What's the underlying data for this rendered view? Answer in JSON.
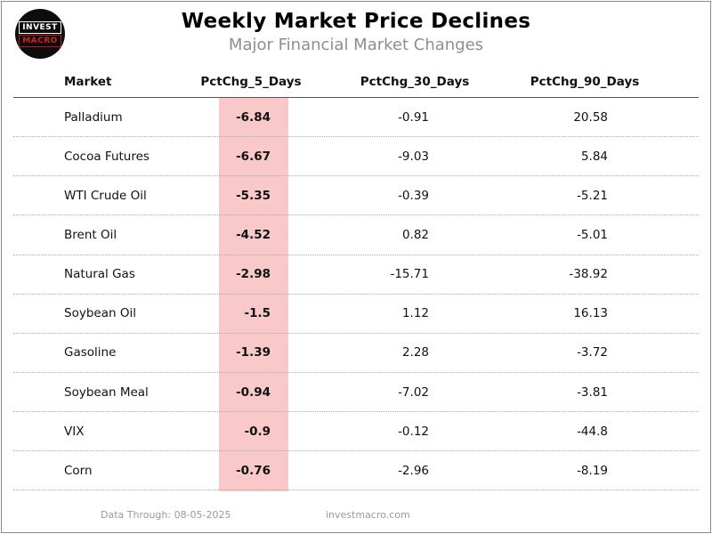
{
  "logo": {
    "line1": "INVEST",
    "line2": "MACRO"
  },
  "header": {
    "title": "Weekly Market Price Declines",
    "subtitle": "Major Financial Market Changes"
  },
  "table": {
    "columns": {
      "market": "Market",
      "d5": "PctChg_5_Days",
      "d30": "PctChg_30_Days",
      "d90": "PctChg_90_Days"
    },
    "highlight_color": "#f9c9c9",
    "rows": [
      {
        "market": "Palladium",
        "d5": "-6.84",
        "d30": "-0.91",
        "d90": "20.58"
      },
      {
        "market": "Cocoa Futures",
        "d5": "-6.67",
        "d30": "-9.03",
        "d90": "5.84"
      },
      {
        "market": "WTI Crude Oil",
        "d5": "-5.35",
        "d30": "-0.39",
        "d90": "-5.21"
      },
      {
        "market": "Brent Oil",
        "d5": "-4.52",
        "d30": "0.82",
        "d90": "-5.01"
      },
      {
        "market": "Natural Gas",
        "d5": "-2.98",
        "d30": "-15.71",
        "d90": "-38.92"
      },
      {
        "market": "Soybean Oil",
        "d5": "-1.5",
        "d30": "1.12",
        "d90": "16.13"
      },
      {
        "market": "Gasoline",
        "d5": "-1.39",
        "d30": "2.28",
        "d90": "-3.72"
      },
      {
        "market": "Soybean Meal",
        "d5": "-0.94",
        "d30": "-7.02",
        "d90": "-3.81"
      },
      {
        "market": "VIX",
        "d5": "-0.9",
        "d30": "-0.12",
        "d90": "-44.8"
      },
      {
        "market": "Corn",
        "d5": "-0.76",
        "d30": "-2.96",
        "d90": "-8.19"
      }
    ]
  },
  "footer": {
    "data_through": "Data Through: 08-05-2025",
    "site": "investmacro.com"
  },
  "chart_data": {
    "type": "table",
    "title": "Weekly Market Price Declines",
    "subtitle": "Major Financial Market Changes",
    "columns": [
      "Market",
      "PctChg_5_Days",
      "PctChg_30_Days",
      "PctChg_90_Days"
    ],
    "rows": [
      [
        "Palladium",
        -6.84,
        -0.91,
        20.58
      ],
      [
        "Cocoa Futures",
        -6.67,
        -9.03,
        5.84
      ],
      [
        "WTI Crude Oil",
        -5.35,
        -0.39,
        -5.21
      ],
      [
        "Brent Oil",
        -4.52,
        0.82,
        -5.01
      ],
      [
        "Natural Gas",
        -2.98,
        -15.71,
        -38.92
      ],
      [
        "Soybean Oil",
        -1.5,
        1.12,
        16.13
      ],
      [
        "Gasoline",
        -1.39,
        2.28,
        -3.72
      ],
      [
        "Soybean Meal",
        -0.94,
        -7.02,
        -3.81
      ],
      [
        "VIX",
        -0.9,
        -0.12,
        -44.8
      ],
      [
        "Corn",
        -0.76,
        -2.96,
        -8.19
      ]
    ],
    "highlighted_column": "PctChg_5_Days",
    "highlight_color": "#f9c9c9",
    "layout": {
      "grid": "dotted-row-separators",
      "header_rule": "solid"
    }
  }
}
